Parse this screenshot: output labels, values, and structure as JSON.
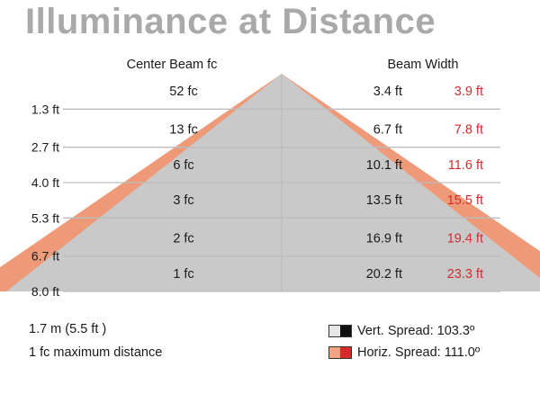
{
  "title": "Illuminance at Distance",
  "colors": {
    "vertical_fill": "#c9c9c9",
    "horizontal_fill": "#ee9a78",
    "grid": "#bdbdbd",
    "red_text": "#d52b2b"
  },
  "chart_data": {
    "type": "table",
    "headers": {
      "center_beam": "Center Beam fc",
      "beam_width": "Beam Width"
    },
    "distances": [
      "1.3 ft",
      "2.7 ft",
      "4.0 ft",
      "5.3 ft",
      "6.7 ft",
      "8.0 ft"
    ],
    "distance_values_ft": [
      1.3,
      2.7,
      4.0,
      5.3,
      6.7,
      8.0
    ],
    "center_beam_fc": [
      "52 fc",
      "13 fc",
      "6 fc",
      "3 fc",
      "2 fc",
      "1 fc"
    ],
    "vertical_beam_width": [
      "3.4 ft",
      "6.7 ft",
      "10.1 ft",
      "13.5 ft",
      "16.9 ft",
      "20.2 ft"
    ],
    "horizontal_beam_width": [
      "3.9 ft",
      "7.8 ft",
      "11.6 ft",
      "15.5 ft",
      "19.4 ft",
      "23.3 ft"
    ],
    "vertical_spread_deg": 103.3,
    "horizontal_spread_deg": 111.0
  },
  "footer": {
    "distance": "1.7 m (5.5 ft )",
    "max_note": "1 fc maximum distance"
  },
  "legend": {
    "vertical": "Vert. Spread: 103.3º",
    "horizontal": "Horiz. Spread: 111.0º"
  }
}
